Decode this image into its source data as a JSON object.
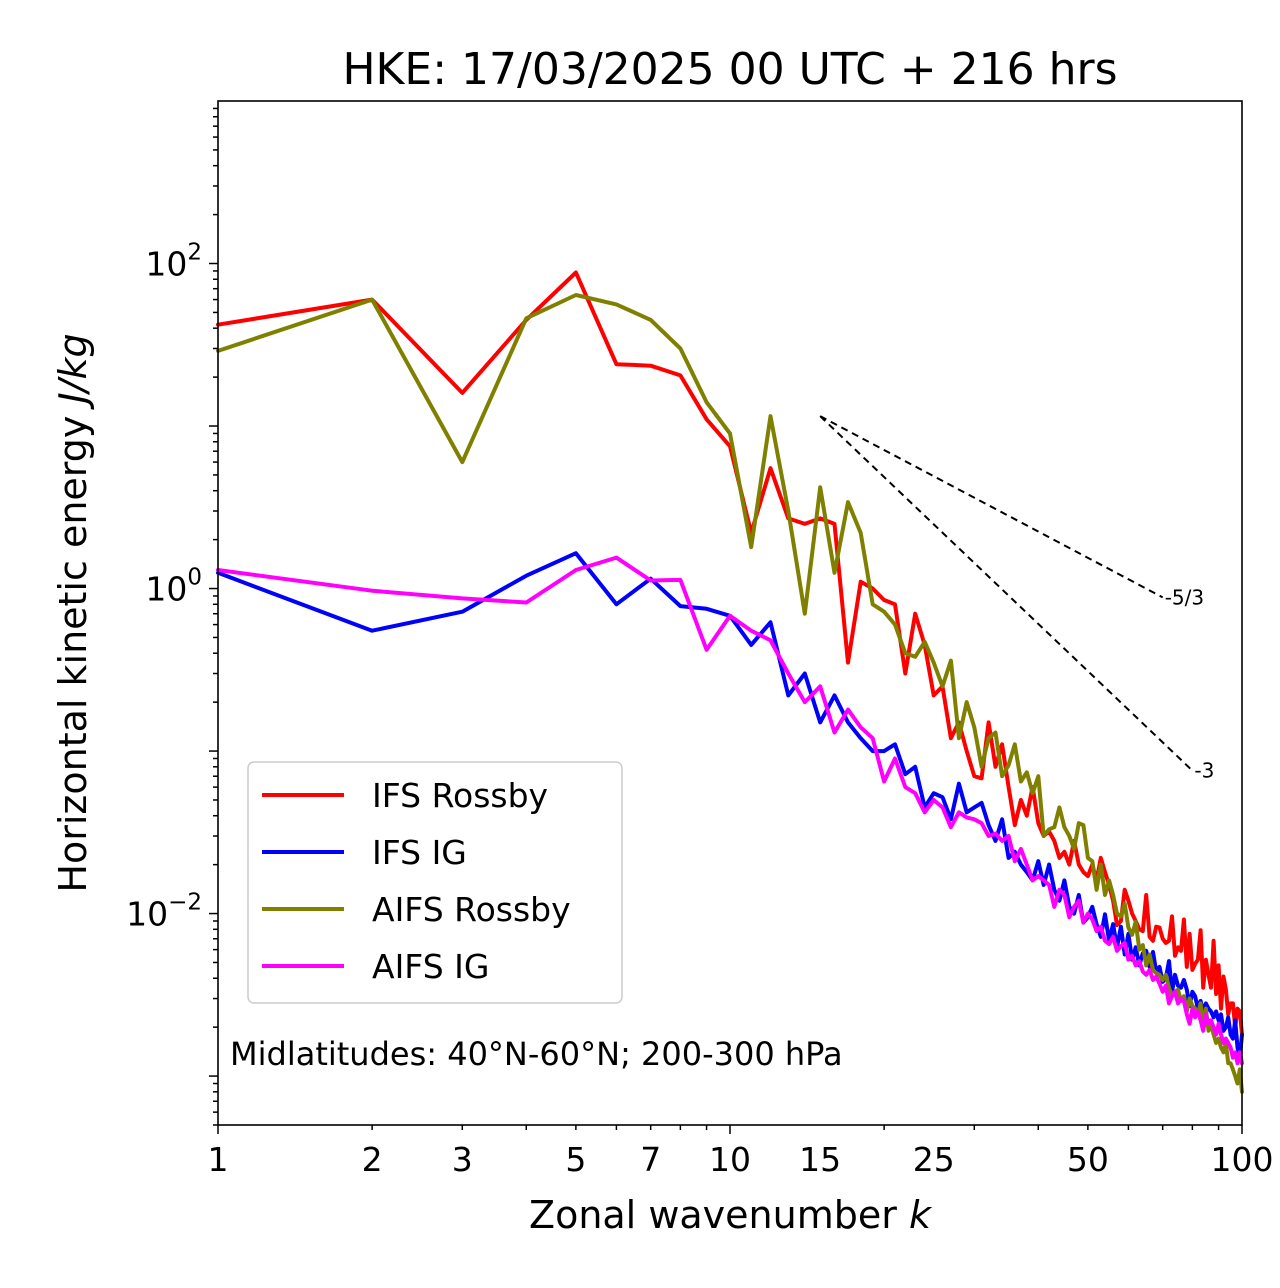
{
  "chart_data": {
    "type": "line",
    "title": "HKE: 17/03/2025 00 UTC + 216 hrs",
    "xlabel": "Zonal wavenumber",
    "xlabel_var": "k",
    "ylabel": "Horizontal kinetic energy",
    "ylabel_unit": "J/kg",
    "xscale": "log",
    "yscale": "log",
    "xlim": [
      1,
      100
    ],
    "ylim": [
      0.0005,
      1000
    ],
    "x_ticks": [
      {
        "value": 1,
        "label": "1"
      },
      {
        "value": 2,
        "label": "2"
      },
      {
        "value": 3,
        "label": "3"
      },
      {
        "value": 5,
        "label": "5"
      },
      {
        "value": 7,
        "label": "7"
      },
      {
        "value": 10,
        "label": "10"
      },
      {
        "value": 15,
        "label": "15"
      },
      {
        "value": 25,
        "label": "25"
      },
      {
        "value": 50,
        "label": "50"
      },
      {
        "value": 100,
        "label": "100"
      }
    ],
    "y_ticks": [
      {
        "value": 100,
        "base": "10",
        "exp": "2"
      },
      {
        "value": 1,
        "base": "10",
        "exp": "0"
      },
      {
        "value": 0.01,
        "base": "10",
        "exp": "−2"
      }
    ],
    "legend_position": "lower-left",
    "annotation": "Midlatitudes: 40°N-60°N; 200-300 hPa",
    "reference_lines": [
      {
        "label": "-5/3",
        "slope": -1.6667,
        "x_start": 15,
        "y_start": 11.5,
        "x_end": 70
      },
      {
        "label": "-3",
        "slope": -3,
        "x_start": 15,
        "y_start": 11.5,
        "x_end": 80
      }
    ],
    "series": [
      {
        "name": "IFS Rossby",
        "color": "#ff0000",
        "x": [
          1,
          2,
          3,
          4,
          5,
          6,
          7,
          8,
          9,
          10,
          11,
          12,
          13,
          14,
          15,
          16,
          17,
          18,
          19,
          20,
          21,
          22,
          23,
          24,
          25,
          26,
          27,
          28,
          29,
          30,
          31,
          32,
          33,
          34,
          35,
          36,
          37,
          38,
          39,
          40,
          41,
          42,
          43,
          44,
          45,
          46,
          47,
          48,
          49,
          50,
          51,
          52,
          53,
          54,
          55,
          56,
          57,
          58,
          59,
          60,
          61,
          62,
          63,
          64,
          65,
          66,
          67,
          68,
          69,
          70,
          71,
          72,
          73,
          74,
          75,
          76,
          77,
          78,
          79,
          80,
          81,
          82,
          83,
          84,
          85,
          86,
          87,
          88,
          89,
          90,
          91,
          92,
          93,
          94,
          95,
          96,
          97,
          98,
          99,
          100
        ],
        "values": [
          42,
          60,
          16,
          45,
          88,
          24,
          23.5,
          20.5,
          11,
          7.5,
          2.2,
          5.5,
          2.7,
          2.5,
          2.7,
          2.5,
          0.35,
          1.1,
          1.0,
          0.85,
          0.8,
          0.3,
          0.7,
          0.45,
          0.22,
          0.25,
          0.12,
          0.15,
          0.1,
          0.07,
          0.068,
          0.15,
          0.08,
          0.11,
          0.06,
          0.035,
          0.05,
          0.04,
          0.06,
          0.036,
          0.03,
          0.032,
          0.028,
          0.022,
          0.024,
          0.02,
          0.028,
          0.02,
          0.018,
          0.017,
          0.02,
          0.016,
          0.022,
          0.018,
          0.015,
          0.012,
          0.0085,
          0.009,
          0.014,
          0.012,
          0.01,
          0.009,
          0.008,
          0.0078,
          0.013,
          0.0072,
          0.0068,
          0.0083,
          0.0082,
          0.007,
          0.0066,
          0.0068,
          0.0096,
          0.0055,
          0.0062,
          0.0059,
          0.0092,
          0.0047,
          0.0075,
          0.0045,
          0.0049,
          0.0052,
          0.0079,
          0.0035,
          0.0052,
          0.0042,
          0.0035,
          0.0068,
          0.0032,
          0.0048,
          0.0026,
          0.0041,
          0.0034,
          0.0024,
          0.0028,
          0.0028,
          0.002,
          0.0026,
          0.0025,
          0.0018
        ]
      },
      {
        "name": "IFS IG",
        "color": "#0000ff",
        "x": [
          1,
          2,
          3,
          4,
          5,
          6,
          7,
          8,
          9,
          10,
          11,
          12,
          13,
          14,
          15,
          16,
          17,
          18,
          19,
          20,
          21,
          22,
          23,
          24,
          25,
          26,
          27,
          28,
          29,
          30,
          31,
          32,
          33,
          34,
          35,
          36,
          37,
          38,
          39,
          40,
          41,
          42,
          43,
          44,
          45,
          46,
          47,
          48,
          49,
          50,
          51,
          52,
          53,
          54,
          55,
          56,
          57,
          58,
          59,
          60,
          61,
          62,
          63,
          64,
          65,
          66,
          67,
          68,
          69,
          70,
          71,
          72,
          73,
          74,
          75,
          76,
          77,
          78,
          79,
          80,
          81,
          82,
          83,
          84,
          85,
          86,
          87,
          88,
          89,
          90,
          91,
          92,
          93,
          94,
          95,
          96,
          97,
          98,
          99,
          100
        ],
        "values": [
          1.25,
          0.55,
          0.72,
          1.2,
          1.65,
          0.8,
          1.15,
          0.78,
          0.75,
          0.68,
          0.45,
          0.62,
          0.22,
          0.3,
          0.15,
          0.22,
          0.15,
          0.12,
          0.1,
          0.1,
          0.11,
          0.072,
          0.08,
          0.045,
          0.055,
          0.052,
          0.038,
          0.063,
          0.042,
          0.045,
          0.048,
          0.035,
          0.028,
          0.038,
          0.022,
          0.024,
          0.02,
          0.018,
          0.016,
          0.021,
          0.015,
          0.02,
          0.014,
          0.012,
          0.016,
          0.011,
          0.01,
          0.013,
          0.0088,
          0.0095,
          0.011,
          0.0086,
          0.0072,
          0.0099,
          0.0068,
          0.0086,
          0.0062,
          0.0083,
          0.0056,
          0.0075,
          0.0052,
          0.0062,
          0.0048,
          0.0057,
          0.0059,
          0.0047,
          0.0058,
          0.0044,
          0.0047,
          0.0038,
          0.004,
          0.0051,
          0.0033,
          0.0042,
          0.0036,
          0.0035,
          0.0039,
          0.0034,
          0.0027,
          0.0033,
          0.0031,
          0.0026,
          0.0029,
          0.0025,
          0.0028,
          0.0026,
          0.0025,
          0.0023,
          0.0025,
          0.0022,
          0.0024,
          0.0019,
          0.002,
          0.0023,
          0.0018,
          0.0017,
          0.0022,
          0.0015,
          0.0013,
          0.0018
        ]
      },
      {
        "name": "AIFS Rossby",
        "color": "#808000",
        "x": [
          1,
          2,
          3,
          4,
          5,
          6,
          7,
          8,
          9,
          10,
          11,
          12,
          13,
          14,
          15,
          16,
          17,
          18,
          19,
          20,
          21,
          22,
          23,
          24,
          25,
          26,
          27,
          28,
          29,
          30,
          31,
          32,
          33,
          34,
          35,
          36,
          37,
          38,
          39,
          40,
          41,
          42,
          43,
          44,
          45,
          46,
          47,
          48,
          49,
          50,
          51,
          52,
          53,
          54,
          55,
          56,
          57,
          58,
          59,
          60,
          61,
          62,
          63,
          64,
          65,
          66,
          67,
          68,
          69,
          70,
          71,
          72,
          73,
          74,
          75,
          76,
          77,
          78,
          79,
          80,
          81,
          82,
          83,
          84,
          85,
          86,
          87,
          88,
          89,
          90,
          91,
          92,
          93,
          94,
          95,
          96,
          97,
          98,
          99,
          100
        ],
        "values": [
          29,
          60,
          6,
          46,
          64,
          56,
          45,
          30,
          14,
          9,
          1.8,
          11.5,
          3,
          0.7,
          4.2,
          1.25,
          3.4,
          2.2,
          0.8,
          0.72,
          0.6,
          0.4,
          0.38,
          0.47,
          0.35,
          0.25,
          0.36,
          0.12,
          0.2,
          0.14,
          0.08,
          0.12,
          0.13,
          0.07,
          0.082,
          0.11,
          0.065,
          0.074,
          0.055,
          0.07,
          0.03,
          0.033,
          0.034,
          0.045,
          0.034,
          0.03,
          0.025,
          0.036,
          0.035,
          0.022,
          0.021,
          0.014,
          0.02,
          0.013,
          0.016,
          0.013,
          0.01,
          0.0096,
          0.0115,
          0.0082,
          0.0074,
          0.0089,
          0.006,
          0.0064,
          0.0048,
          0.0056,
          0.0045,
          0.0043,
          0.0042,
          0.0039,
          0.0042,
          0.0035,
          0.0031,
          0.0033,
          0.0034,
          0.0029,
          0.0031,
          0.0025,
          0.003,
          0.0027,
          0.0026,
          0.0024,
          0.0028,
          0.002,
          0.0026,
          0.0019,
          0.0021,
          0.0018,
          0.0016,
          0.0017,
          0.0015,
          0.0014,
          0.0016,
          0.0012,
          0.0012,
          0.0011,
          0.001,
          0.0009,
          0.0011,
          0.0008
        ]
      },
      {
        "name": "AIFS IG",
        "color": "#ff00ff",
        "x": [
          1,
          2,
          3,
          4,
          5,
          6,
          7,
          8,
          9,
          10,
          11,
          12,
          13,
          14,
          15,
          16,
          17,
          18,
          19,
          20,
          21,
          22,
          23,
          24,
          25,
          26,
          27,
          28,
          29,
          30,
          31,
          32,
          33,
          34,
          35,
          36,
          37,
          38,
          39,
          40,
          41,
          42,
          43,
          44,
          45,
          46,
          47,
          48,
          49,
          50,
          51,
          52,
          53,
          54,
          55,
          56,
          57,
          58,
          59,
          60,
          61,
          62,
          63,
          64,
          65,
          66,
          67,
          68,
          69,
          70,
          71,
          72,
          73,
          74,
          75,
          76,
          77,
          78,
          79,
          80,
          81,
          82,
          83,
          84,
          85,
          86,
          87,
          88,
          89,
          90,
          91,
          92,
          93,
          94,
          95,
          96,
          97,
          98,
          99,
          100
        ],
        "values": [
          1.3,
          0.97,
          0.87,
          0.82,
          1.3,
          1.55,
          1.12,
          1.13,
          0.42,
          0.68,
          0.55,
          0.48,
          0.3,
          0.2,
          0.25,
          0.13,
          0.18,
          0.14,
          0.12,
          0.065,
          0.09,
          0.06,
          0.055,
          0.042,
          0.05,
          0.045,
          0.034,
          0.042,
          0.039,
          0.038,
          0.036,
          0.03,
          0.031,
          0.028,
          0.03,
          0.021,
          0.025,
          0.02,
          0.016,
          0.017,
          0.016,
          0.015,
          0.011,
          0.014,
          0.013,
          0.0095,
          0.011,
          0.012,
          0.0088,
          0.01,
          0.0092,
          0.0078,
          0.0083,
          0.0068,
          0.0065,
          0.0072,
          0.0059,
          0.0063,
          0.0066,
          0.0052,
          0.0055,
          0.0048,
          0.0051,
          0.0044,
          0.0042,
          0.0045,
          0.0039,
          0.0041,
          0.0037,
          0.0033,
          0.0036,
          0.0028,
          0.0031,
          0.0033,
          0.0028,
          0.003,
          0.0029,
          0.0024,
          0.0021,
          0.0026,
          0.0023,
          0.0025,
          0.0022,
          0.0019,
          0.0024,
          0.0021,
          0.0022,
          0.002,
          0.0018,
          0.0021,
          0.0018,
          0.0016,
          0.0017,
          0.0016,
          0.0015,
          0.0013,
          0.0014,
          0.0012,
          0.0014,
          0.0012
        ]
      }
    ]
  }
}
